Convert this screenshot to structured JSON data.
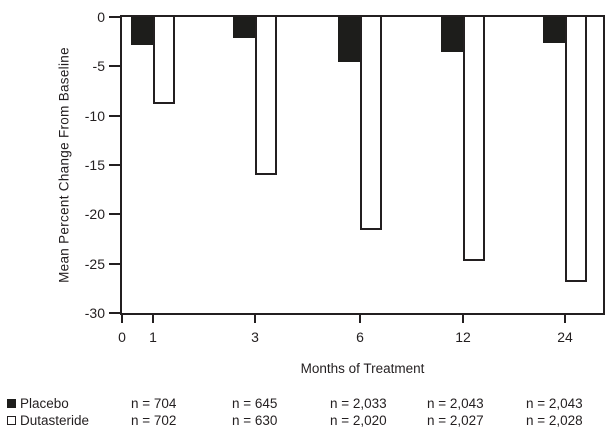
{
  "chart_data": {
    "type": "bar",
    "title": "",
    "ylabel": "Mean Percent Change From Baseline",
    "xlabel": "Months of Treatment",
    "categories": [
      "1",
      "3",
      "6",
      "12",
      "24"
    ],
    "x_tick_labels": [
      "0",
      "1",
      "3",
      "6",
      "12",
      "24"
    ],
    "y_tick_labels": [
      "0",
      "-5",
      "-10",
      "-15",
      "-20",
      "-25",
      "-30"
    ],
    "ylim": [
      -30,
      0
    ],
    "grid": false,
    "legend_position": "bottom-left",
    "series": [
      {
        "name": "Placebo",
        "style": "filled-black",
        "values": [
          -2.8,
          -2.1,
          -4.6,
          -3.5,
          -2.6
        ],
        "n_labels": [
          "n = 704",
          "n = 645",
          "n = 2,033",
          "n = 2,043",
          "n = 2,043"
        ]
      },
      {
        "name": "Dutasteride",
        "style": "outlined-white",
        "values": [
          -8.8,
          -16.0,
          -21.6,
          -24.7,
          -26.9
        ],
        "n_labels": [
          "n = 702",
          "n = 630",
          "n = 2,020",
          "n = 2,027",
          "n = 2,028"
        ]
      }
    ],
    "colors": {
      "ink": "#231f20",
      "bar_fill_placebo": "#1d1d1b",
      "bar_fill_dutasteride": "#ffffff",
      "background": "#ffffff"
    }
  }
}
